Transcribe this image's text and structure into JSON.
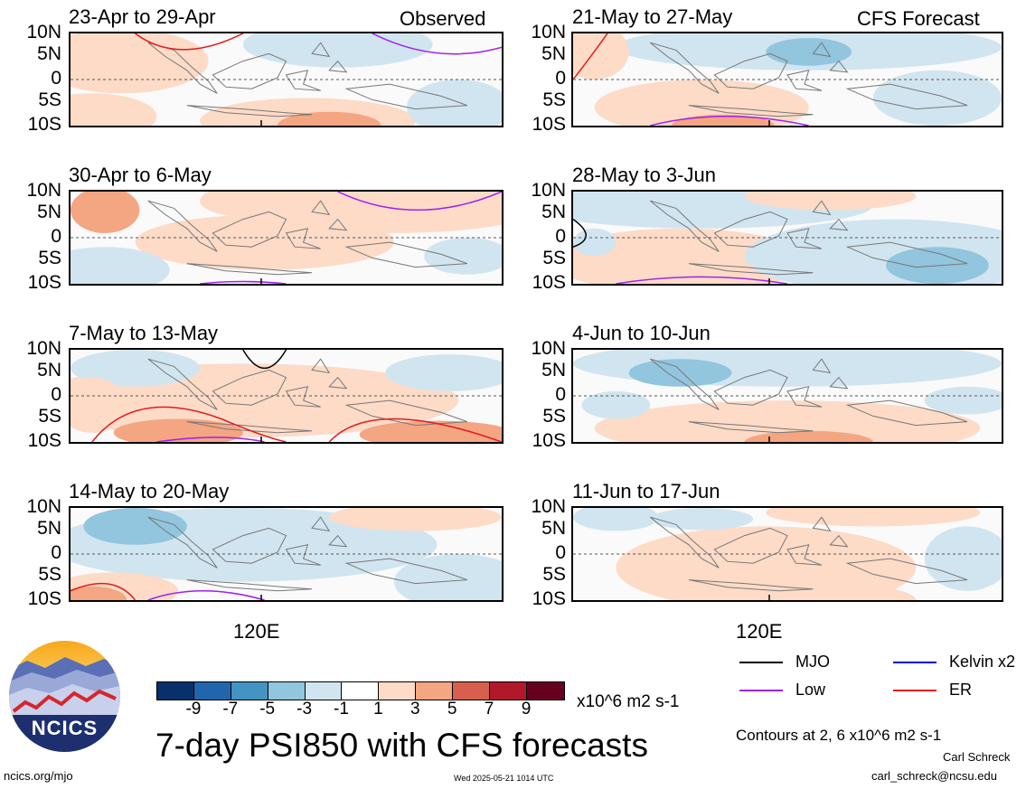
{
  "panels": [
    {
      "title": "23-Apr to 29-Apr",
      "tag": "Observed"
    },
    {
      "title": "30-Apr to 6-May",
      "tag": ""
    },
    {
      "title": "7-May to 13-May",
      "tag": ""
    },
    {
      "title": "14-May to 20-May",
      "tag": ""
    },
    {
      "title": "21-May to 27-May",
      "tag": "CFS Forecast"
    },
    {
      "title": "28-May to 3-Jun",
      "tag": ""
    },
    {
      "title": "4-Jun to 10-Jun",
      "tag": ""
    },
    {
      "title": "11-Jun to 17-Jun",
      "tag": ""
    }
  ],
  "lat_labels": [
    "10N",
    "5N",
    "0",
    "5S",
    "10S"
  ],
  "lon_label": "120E",
  "colorbar": {
    "colors": [
      "#08306b",
      "#2166ac",
      "#4393c3",
      "#92c5de",
      "#d1e5f0",
      "#ffffff",
      "#fddbc7",
      "#f4a582",
      "#d6604d",
      "#b2182b",
      "#67001f"
    ],
    "labels": [
      "-9",
      "-7",
      "-5",
      "-3",
      "-1",
      "1",
      "3",
      "5",
      "7",
      "9"
    ],
    "units": "x10^6 m2 s-1"
  },
  "title": "7-day PSI850 with CFS forecasts",
  "legend": [
    {
      "label": "MJO",
      "color": "#000000"
    },
    {
      "label": "Kelvin x2",
      "color": "#0000cc"
    },
    {
      "label": "Low",
      "color": "#a020f0"
    },
    {
      "label": "ER",
      "color": "#e41a1c"
    }
  ],
  "contour_note": "Contours at 2, 6 x10^6 m2 s-1",
  "author": "Carl Schreck",
  "email": "carl_schreck@ncsu.edu",
  "site": "ncics.org/mjo",
  "timestamp": "Wed 2025-05-21 1014 UTC",
  "logo_text": "NCICS"
}
